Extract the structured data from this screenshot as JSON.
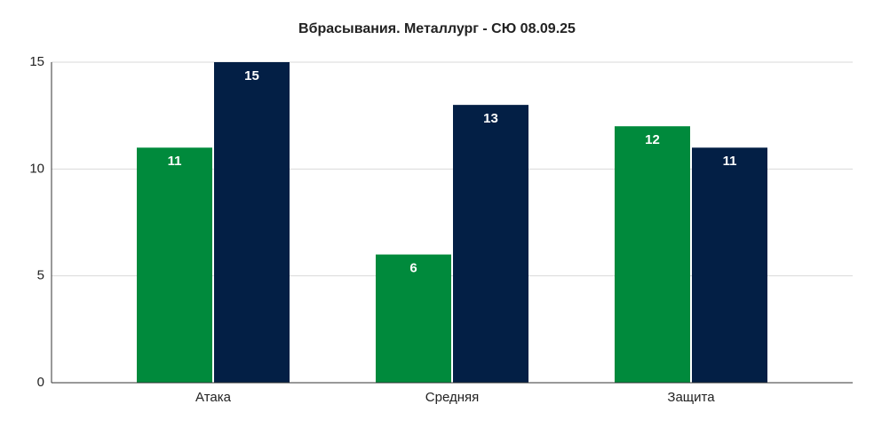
{
  "chart_data": {
    "type": "bar",
    "title": "Вбрасывания. Металлург - СЮ 08.09.25",
    "categories": [
      "Атака",
      "Средняя",
      "Защита"
    ],
    "series": [
      {
        "color": "#008a3c",
        "values": [
          11,
          6,
          12
        ]
      },
      {
        "color": "#031f45",
        "values": [
          15,
          13,
          11
        ]
      }
    ],
    "ylim": [
      0,
      15
    ],
    "yticks": [
      0,
      5,
      10,
      15
    ],
    "grid": true
  }
}
